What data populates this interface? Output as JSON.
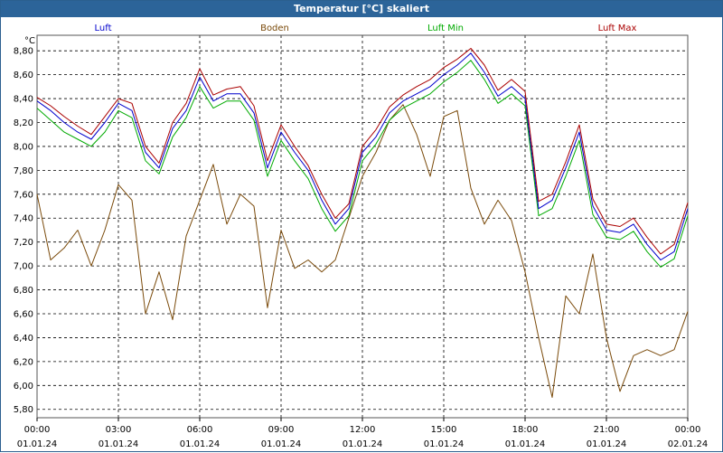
{
  "window": {
    "title": "Temperatur [°C] skaliert"
  },
  "colors": {
    "titlebar": "#2c6499",
    "luft": "#0000cc",
    "boden": "#7a4a0a",
    "luft_min": "#00aa00",
    "luft_max": "#aa0000"
  },
  "chart_data": {
    "type": "line",
    "title": "Temperatur [°C] skaliert",
    "ylabel": "°C",
    "ylim": [
      5.73,
      8.93
    ],
    "xlim": [
      0,
      24
    ],
    "grid": true,
    "legend": "top",
    "yticks": [
      "8,80",
      "8,60",
      "8,40",
      "8,20",
      "8,00",
      "7,80",
      "7,60",
      "7,40",
      "7,20",
      "7,00",
      "6,80",
      "6,60",
      "6,40",
      "6,20",
      "6,00",
      "5,80"
    ],
    "ytick_values": [
      8.8,
      8.6,
      8.4,
      8.2,
      8.0,
      7.8,
      7.6,
      7.4,
      7.2,
      7.0,
      6.8,
      6.6,
      6.4,
      6.2,
      6.0,
      5.8
    ],
    "xticks": [
      {
        "time": "00:00",
        "date": "01.01.24",
        "hour": 0
      },
      {
        "time": "03:00",
        "date": "01.01.24",
        "hour": 3
      },
      {
        "time": "06:00",
        "date": "01.01.24",
        "hour": 6
      },
      {
        "time": "09:00",
        "date": "01.01.24",
        "hour": 9
      },
      {
        "time": "12:00",
        "date": "01.01.24",
        "hour": 12
      },
      {
        "time": "15:00",
        "date": "01.01.24",
        "hour": 15
      },
      {
        "time": "18:00",
        "date": "01.01.24",
        "hour": 18
      },
      {
        "time": "21:00",
        "date": "01.01.24",
        "hour": 21
      },
      {
        "time": "00:00",
        "date": "02.01.24",
        "hour": 24
      }
    ],
    "x": [
      0,
      0.5,
      1,
      1.5,
      2,
      2.5,
      3,
      3.5,
      4,
      4.5,
      5,
      5.5,
      6,
      6.5,
      7,
      7.5,
      8,
      8.5,
      9,
      9.5,
      10,
      10.5,
      11,
      11.5,
      12,
      12.5,
      13,
      13.5,
      14,
      14.5,
      15,
      15.5,
      16,
      16.5,
      17,
      17.5,
      18,
      18.5,
      19,
      19.5,
      20,
      20.5,
      21,
      21.5,
      22,
      22.5,
      23,
      23.5,
      24
    ],
    "series": [
      {
        "name": "Luft",
        "color": "#0000cc",
        "values": [
          8.38,
          8.3,
          8.2,
          8.12,
          8.06,
          8.2,
          8.36,
          8.3,
          7.95,
          7.82,
          8.15,
          8.3,
          8.58,
          8.38,
          8.44,
          8.44,
          8.28,
          7.82,
          8.12,
          7.95,
          7.8,
          7.55,
          7.35,
          7.48,
          7.95,
          8.08,
          8.28,
          8.38,
          8.44,
          8.5,
          8.6,
          8.68,
          8.78,
          8.62,
          8.42,
          8.5,
          8.4,
          7.48,
          7.55,
          7.82,
          8.12,
          7.5,
          7.3,
          7.28,
          7.35,
          7.18,
          7.05,
          7.12,
          7.48
        ]
      },
      {
        "name": "Boden",
        "color": "#7a4a0a",
        "values": [
          7.6,
          7.05,
          7.15,
          7.3,
          7.0,
          7.3,
          7.68,
          7.55,
          6.6,
          6.95,
          6.55,
          7.25,
          7.55,
          7.85,
          7.35,
          7.6,
          7.5,
          6.65,
          7.3,
          6.98,
          7.05,
          6.95,
          7.05,
          7.4,
          7.75,
          7.95,
          8.22,
          8.35,
          8.1,
          7.75,
          8.25,
          8.3,
          7.65,
          7.35,
          7.55,
          7.38,
          6.95,
          6.4,
          5.9,
          6.75,
          6.6,
          7.1,
          6.4,
          5.95,
          6.25,
          6.3,
          6.25,
          6.3,
          6.62
        ]
      },
      {
        "name": "Luft Min",
        "color": "#00aa00",
        "values": [
          8.32,
          8.22,
          8.12,
          8.06,
          8.0,
          8.12,
          8.3,
          8.24,
          7.88,
          7.77,
          8.08,
          8.24,
          8.5,
          8.32,
          8.38,
          8.38,
          8.22,
          7.75,
          8.05,
          7.88,
          7.73,
          7.48,
          7.29,
          7.42,
          7.88,
          8.02,
          8.22,
          8.32,
          8.38,
          8.44,
          8.54,
          8.62,
          8.72,
          8.56,
          8.36,
          8.44,
          8.34,
          7.42,
          7.48,
          7.75,
          8.05,
          7.43,
          7.24,
          7.22,
          7.29,
          7.12,
          6.99,
          7.06,
          7.42
        ]
      },
      {
        "name": "Luft Max",
        "color": "#aa0000",
        "values": [
          8.41,
          8.34,
          8.25,
          8.17,
          8.1,
          8.25,
          8.4,
          8.36,
          8.0,
          7.86,
          8.2,
          8.36,
          8.65,
          8.43,
          8.48,
          8.5,
          8.34,
          7.88,
          8.18,
          8.0,
          7.84,
          7.6,
          7.4,
          7.52,
          8.0,
          8.14,
          8.33,
          8.43,
          8.5,
          8.56,
          8.66,
          8.73,
          8.82,
          8.68,
          8.47,
          8.56,
          8.46,
          7.54,
          7.6,
          7.87,
          8.18,
          7.56,
          7.35,
          7.33,
          7.4,
          7.24,
          7.1,
          7.18,
          7.53
        ]
      }
    ]
  }
}
